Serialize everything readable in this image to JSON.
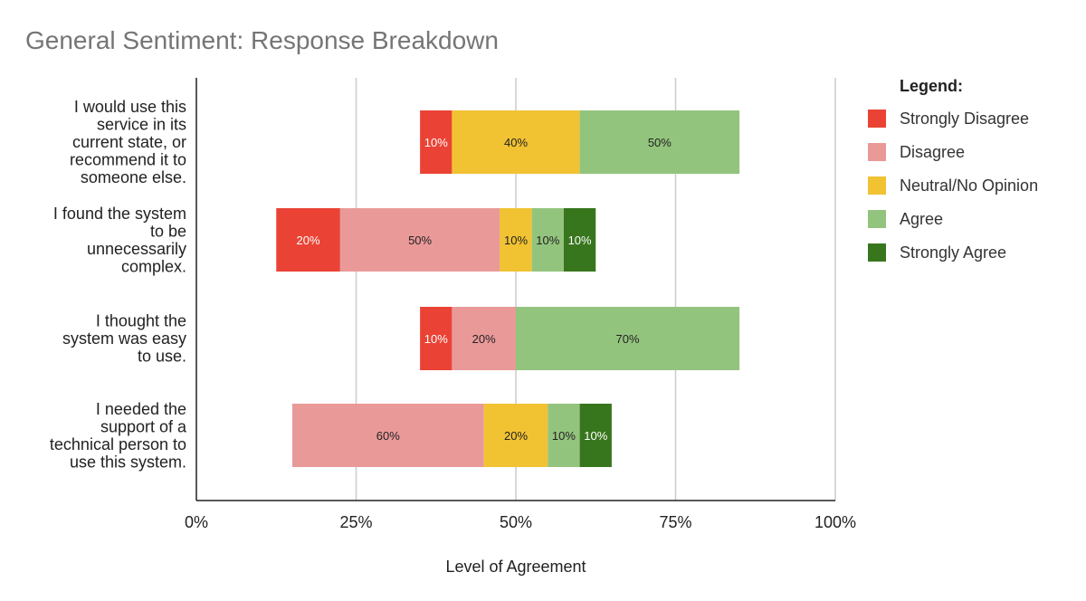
{
  "chart_data": {
    "type": "bar",
    "orientation": "horizontal",
    "stacked": true,
    "diverging": true,
    "title": "General Sentiment: Response Breakdown",
    "xlabel": "Level of Agreement",
    "ylabel": "",
    "xlim": [
      0,
      100
    ],
    "x_ticks": [
      "0%",
      "25%",
      "50%",
      "75%",
      "100%"
    ],
    "grid": true,
    "legend_title": "Legend:",
    "legend_position": "right",
    "categories": [
      [
        "I would use this",
        "service in its",
        "current state, or",
        "recommend it to",
        "someone else."
      ],
      [
        "I found the system",
        "to be",
        "unnecessarily",
        "complex."
      ],
      [
        "I thought the",
        "system was easy",
        "to use."
      ],
      [
        "I needed the",
        "support of a",
        "technical person to",
        "use this system."
      ]
    ],
    "series": [
      {
        "name": "Strongly Disagree",
        "color": "#ea4335",
        "label_color": "#ffffff",
        "values": [
          10,
          20,
          10,
          0
        ]
      },
      {
        "name": "Disagree",
        "color": "#ea9999",
        "label_color": "#222222",
        "values": [
          0,
          50,
          20,
          60
        ]
      },
      {
        "name": "Neutral/No Opinion",
        "color": "#f1c232",
        "label_color": "#222222",
        "values": [
          40,
          10,
          0,
          20
        ]
      },
      {
        "name": "Agree",
        "color": "#93c47d",
        "label_color": "#222222",
        "values": [
          50,
          10,
          70,
          10
        ]
      },
      {
        "name": "Strongly Agree",
        "color": "#38761d",
        "label_color": "#ffffff",
        "values": [
          0,
          10,
          0,
          10
        ]
      }
    ],
    "bar_start": [
      35,
      12.5,
      35,
      15
    ]
  }
}
